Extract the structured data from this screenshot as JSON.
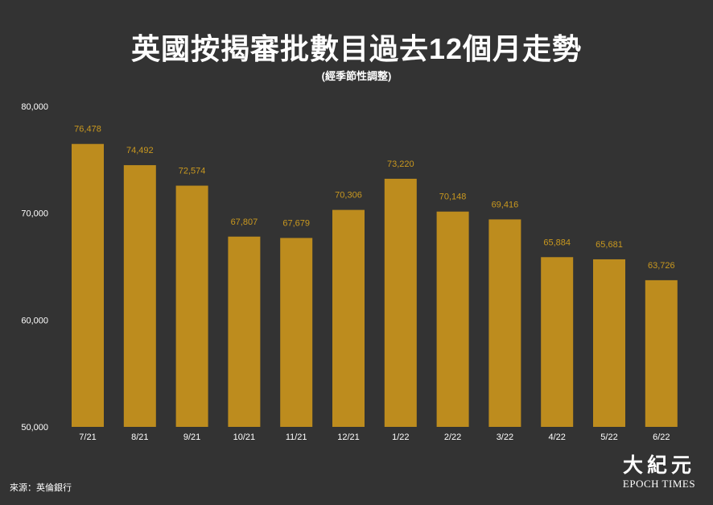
{
  "colors": {
    "background": "#333333",
    "bar": "#BD8C1E",
    "value_label": "#C9981F",
    "text": "#FFFFFF"
  },
  "source": "來源：英倫銀行",
  "logo": {
    "chinese": "大紀元",
    "english": "EPOCH TIMES"
  },
  "chart_data": {
    "type": "bar",
    "title": "英國按揭審批數目過去12個月走勢",
    "subtitle": "(經季節性調整)",
    "xlabel": "",
    "ylabel": "",
    "categories": [
      "7/21",
      "8/21",
      "9/21",
      "10/21",
      "11/21",
      "12/21",
      "1/22",
      "2/22",
      "3/22",
      "4/22",
      "5/22",
      "6/22"
    ],
    "values": [
      76478,
      74492,
      72574,
      67807,
      67679,
      70306,
      73220,
      70148,
      69416,
      65884,
      65681,
      63726
    ],
    "value_labels": [
      "76,478",
      "74,492",
      "72,574",
      "67,807",
      "67,679",
      "70,306",
      "73,220",
      "70,148",
      "69,416",
      "65,884",
      "65,681",
      "63,726"
    ],
    "ylim": [
      50000,
      80000
    ],
    "yticks": [
      50000,
      60000,
      70000,
      80000
    ],
    "ytick_labels": [
      "50,000",
      "60,000",
      "70,000",
      "80,000"
    ],
    "grid": false,
    "legend": "none"
  }
}
